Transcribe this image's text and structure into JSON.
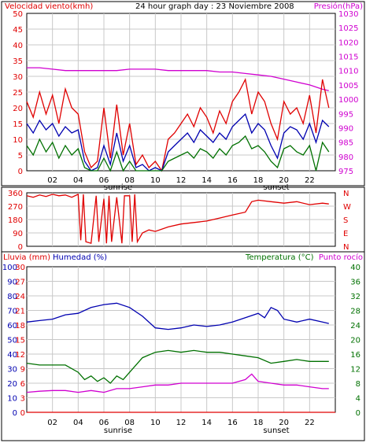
{
  "colors": {
    "red": "#e00000",
    "magenta": "#d000d0",
    "blue": "#0000b0",
    "green": "#007000",
    "grid": "#c8c8c8",
    "frame": "#000000"
  },
  "x_ticks": [
    "02",
    "04",
    "06",
    "08",
    "10",
    "12",
    "14",
    "16",
    "18",
    "20",
    "22"
  ],
  "sunrise_label": "sunrise",
  "sunset_label": "sunset",
  "chart_data": [
    {
      "type": "line",
      "title": "24 hour graph day : 23 Noviembre 2008",
      "left_label": "Velocidad viento(kmh)",
      "right_label": "Presión(hPa)",
      "y_left_ticks": [
        "50",
        "45",
        "40",
        "35",
        "30",
        "25",
        "20",
        "15",
        "10",
        "5",
        "0"
      ],
      "y_right_ticks": [
        "1030",
        "1025",
        "1020",
        "1015",
        "1010",
        "1005",
        "1000",
        "995",
        "990",
        "985",
        "980",
        "975"
      ],
      "ylim_left": [
        0,
        50
      ],
      "ylim_right": [
        975,
        1030
      ],
      "xlim": [
        0,
        24
      ],
      "grid": true,
      "series": [
        {
          "axis": "right",
          "color": "magenta",
          "x": [
            0,
            1,
            2,
            3,
            4,
            5,
            6,
            7,
            8,
            9,
            10,
            11,
            12,
            13,
            14,
            15,
            16,
            17,
            18,
            19,
            20,
            21,
            22,
            23,
            23.5
          ],
          "y": [
            1011,
            1011,
            1010.5,
            1010,
            1010,
            1010,
            1010,
            1010,
            1010.5,
            1010.5,
            1010.5,
            1010,
            1010,
            1010,
            1010,
            1009.5,
            1009.5,
            1009,
            1008.5,
            1008,
            1007,
            1006,
            1005,
            1003.5,
            1003
          ]
        },
        {
          "axis": "left",
          "color": "red",
          "x": [
            0,
            0.5,
            1,
            1.5,
            2,
            2.5,
            3,
            3.5,
            4,
            4.5,
            5,
            5.5,
            6,
            6.5,
            7,
            7.5,
            8,
            8.5,
            9,
            9.5,
            10,
            10.5,
            11,
            11.5,
            12,
            12.5,
            13,
            13.5,
            14,
            14.5,
            15,
            15.5,
            16,
            16.5,
            17,
            17.5,
            18,
            18.5,
            19,
            19.5,
            20,
            20.5,
            21,
            21.5,
            22,
            22.5,
            23,
            23.5
          ],
          "y": [
            22,
            17,
            25,
            18,
            24,
            15,
            26,
            20,
            18,
            6,
            1,
            3,
            20,
            4,
            21,
            5,
            15,
            2,
            5,
            1,
            3,
            0,
            10,
            12,
            15,
            18,
            14,
            20,
            17,
            12,
            19,
            15,
            22,
            25,
            29,
            18,
            25,
            22,
            15,
            10,
            22,
            18,
            20,
            15,
            24,
            12,
            29,
            20
          ]
        },
        {
          "axis": "left",
          "color": "blue",
          "x": [
            0,
            0.5,
            1,
            1.5,
            2,
            2.5,
            3,
            3.5,
            4,
            4.5,
            5,
            5.5,
            6,
            6.5,
            7,
            7.5,
            8,
            8.5,
            9,
            9.5,
            10,
            10.5,
            11,
            11.5,
            12,
            12.5,
            13,
            13.5,
            14,
            14.5,
            15,
            15.5,
            16,
            16.5,
            17,
            17.5,
            18,
            18.5,
            19,
            19.5,
            20,
            20.5,
            21,
            21.5,
            22,
            22.5,
            23,
            23.5
          ],
          "y": [
            15,
            12,
            16,
            13,
            15,
            11,
            14,
            12,
            13,
            3,
            0,
            1,
            8,
            2,
            12,
            3,
            8,
            1,
            2,
            0,
            1,
            0,
            6,
            8,
            10,
            12,
            9,
            13,
            11,
            9,
            12,
            10,
            14,
            16,
            18,
            12,
            15,
            13,
            8,
            4,
            12,
            14,
            13,
            10,
            15,
            9,
            16,
            14
          ]
        },
        {
          "axis": "left",
          "color": "green",
          "x": [
            0,
            0.5,
            1,
            1.5,
            2,
            2.5,
            3,
            3.5,
            4,
            4.5,
            5,
            5.5,
            6,
            6.5,
            7,
            7.5,
            8,
            8.5,
            9,
            9.5,
            10,
            10.5,
            11,
            11.5,
            12,
            12.5,
            13,
            13.5,
            14,
            14.5,
            15,
            15.5,
            16,
            16.5,
            17,
            17.5,
            18,
            18.5,
            19,
            19.5,
            20,
            20.5,
            21,
            21.5,
            22,
            22.5,
            23,
            23.5
          ],
          "y": [
            8,
            5,
            10,
            6,
            9,
            4,
            8,
            5,
            7,
            1,
            0,
            0,
            4,
            0,
            6,
            0,
            3,
            0,
            0,
            0,
            0,
            0,
            3,
            4,
            5,
            6,
            4,
            7,
            6,
            4,
            7,
            5,
            8,
            9,
            11,
            7,
            8,
            6,
            3,
            1,
            7,
            8,
            6,
            5,
            8,
            0,
            9,
            6
          ]
        }
      ]
    },
    {
      "type": "line",
      "y_left_ticks": [
        "360",
        "270",
        "180",
        "90",
        "0"
      ],
      "ylim": [
        0,
        360
      ],
      "compass_labels": [
        "N",
        "W",
        "S",
        "E",
        "N"
      ],
      "grid": true,
      "series": [
        {
          "color": "red",
          "x": [
            0,
            0.5,
            1,
            1.5,
            2,
            2.5,
            3,
            3.5,
            4,
            4.2,
            4.4,
            4.6,
            5,
            5.4,
            5.6,
            6,
            6.2,
            6.4,
            6.6,
            7,
            7.4,
            7.6,
            8,
            8.2,
            8.4,
            8.6,
            9,
            9.5,
            10,
            11,
            12,
            13,
            14,
            15,
            16,
            17,
            17.5,
            18,
            19,
            20,
            21,
            22,
            23,
            23.5
          ],
          "y": [
            340,
            330,
            345,
            335,
            350,
            340,
            345,
            330,
            350,
            40,
            350,
            30,
            20,
            340,
            30,
            320,
            20,
            340,
            30,
            330,
            20,
            340,
            340,
            30,
            350,
            30,
            90,
            110,
            100,
            130,
            150,
            160,
            170,
            190,
            210,
            230,
            300,
            310,
            300,
            290,
            300,
            280,
            290,
            285
          ]
        }
      ]
    },
    {
      "type": "line",
      "left_label1": "Lluvia (mm)",
      "left_label2": "Humedad (%)",
      "right_label1": "Temperatura (°C)",
      "right_label2": "Punto rocío",
      "y_hum_ticks": [
        "100",
        "90",
        "80",
        "70",
        "60",
        "50",
        "40",
        "30",
        "20",
        "10",
        "0"
      ],
      "y_rain_ticks": [
        "30",
        "27",
        "24",
        "21",
        "18",
        "15",
        "12",
        "9",
        "6",
        "3",
        "0"
      ],
      "y_right_ticks": [
        "40",
        "36",
        "32",
        "28",
        "24",
        "20",
        "16",
        "12",
        "8",
        "4",
        "0"
      ],
      "ylim_humidity": [
        0,
        100
      ],
      "ylim_rain": [
        0,
        30
      ],
      "ylim_temp": [
        0,
        40
      ],
      "grid": true,
      "series": [
        {
          "axis": "humidity",
          "color": "blue",
          "x": [
            0,
            1,
            2,
            3,
            4,
            5,
            6,
            7,
            8,
            9,
            10,
            11,
            12,
            13,
            14,
            15,
            16,
            17,
            18,
            18.5,
            19,
            19.5,
            20,
            21,
            22,
            23,
            23.5
          ],
          "y": [
            62,
            63,
            64,
            67,
            68,
            72,
            74,
            75,
            72,
            66,
            58,
            57,
            58,
            60,
            59,
            60,
            62,
            65,
            68,
            65,
            72,
            70,
            64,
            62,
            64,
            62,
            61
          ]
        },
        {
          "axis": "temp",
          "color": "green",
          "x": [
            0,
            1,
            2,
            3,
            4,
            4.5,
            5,
            5.5,
            6,
            6.5,
            7,
            7.5,
            8,
            9,
            10,
            11,
            12,
            13,
            14,
            15,
            16,
            17,
            18,
            19,
            20,
            21,
            22,
            23,
            23.5
          ],
          "y": [
            13.5,
            13,
            13,
            13,
            11,
            9,
            10,
            8.5,
            9.5,
            8,
            10,
            9,
            11,
            15,
            16.5,
            17,
            16.5,
            17,
            16.5,
            16.5,
            16,
            15.5,
            15,
            13.5,
            14,
            14.5,
            14,
            14,
            14
          ]
        },
        {
          "axis": "temp",
          "color": "magenta",
          "x": [
            0,
            1,
            2,
            3,
            4,
            5,
            6,
            7,
            8,
            9,
            10,
            11,
            12,
            13,
            14,
            15,
            16,
            17,
            17.5,
            18,
            19,
            20,
            21,
            22,
            23,
            23.5
          ],
          "y": [
            5.5,
            5.8,
            6,
            6,
            5.5,
            6,
            5.5,
            6.5,
            6.5,
            7,
            7.5,
            7.5,
            8,
            8,
            8,
            8,
            8,
            9,
            10.5,
            8.5,
            8,
            7.5,
            7.5,
            7,
            6.5,
            6.5
          ]
        },
        {
          "axis": "rain",
          "color": "red",
          "x": [
            0,
            24
          ],
          "y": [
            0,
            0
          ]
        }
      ]
    }
  ]
}
